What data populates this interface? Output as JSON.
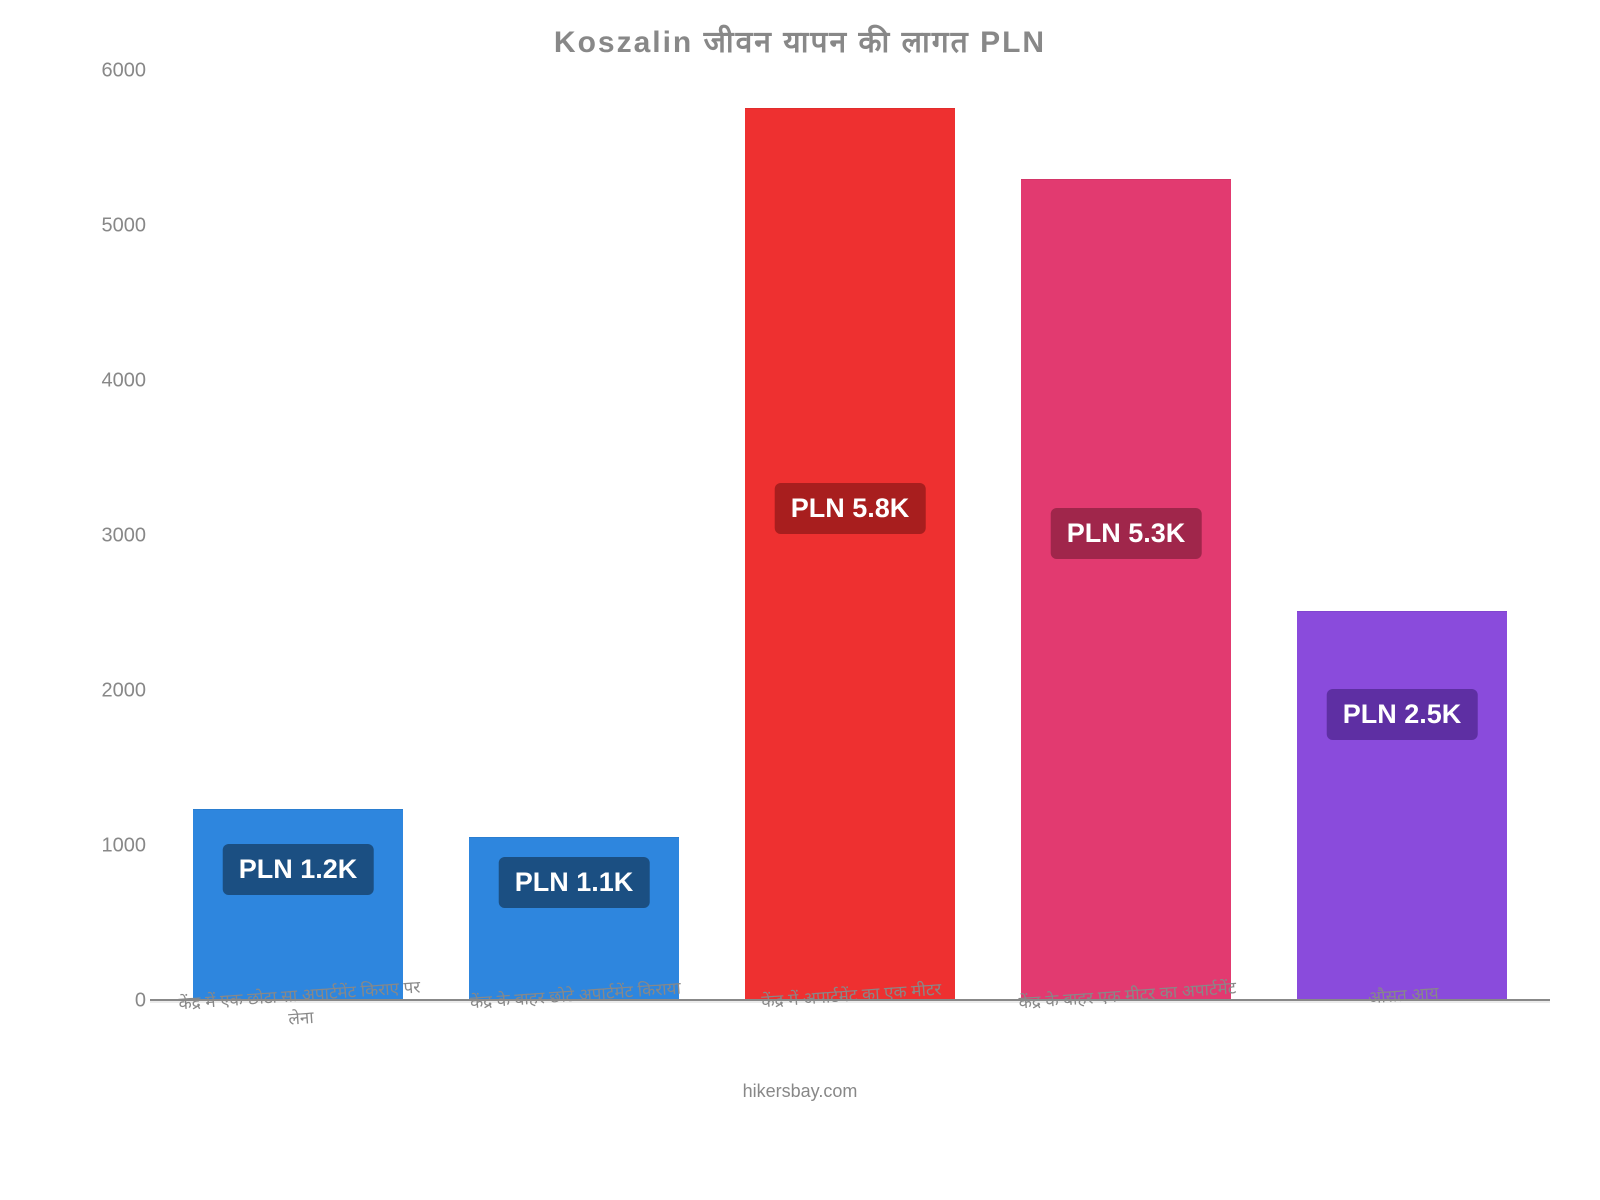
{
  "chart": {
    "type": "bar",
    "title": "Koszalin जीवन   यापन   की   लागत   PLN",
    "title_color": "#888888",
    "title_fontsize": 30,
    "background_color": "#ffffff",
    "y_axis": {
      "min": 0,
      "max": 6000,
      "ticks": [
        0,
        1000,
        2000,
        3000,
        4000,
        5000,
        6000
      ],
      "tick_fontsize": 20,
      "tick_color": "#888888"
    },
    "x_axis": {
      "label_fontsize": 17,
      "label_color": "#888888",
      "label_rotation_deg": -4
    },
    "bars": [
      {
        "category": "केंद्र में एक छोटा सा अपार्टमेंट किराए पर लेना",
        "value": 1230,
        "display": "PLN 1.2K",
        "bar_color": "#2e86de",
        "label_bg": "#1b4f82",
        "label_top_pct": 18
      },
      {
        "category": "केंद्र के बाहर छोटे अपार्टमेंट किराया",
        "value": 1050,
        "display": "PLN 1.1K",
        "bar_color": "#2e86de",
        "label_bg": "#1b4f82",
        "label_top_pct": 12
      },
      {
        "category": "केंद्र में अपार्टमेंट का एक मीटर",
        "value": 5760,
        "display": "PLN 5.8K",
        "bar_color": "#ee3030",
        "label_bg": "#a81e1e",
        "label_top_pct": 42
      },
      {
        "category": "केंद्र के बाहर एक मीटर का अपार्टमेंट",
        "value": 5300,
        "display": "PLN 5.3K",
        "bar_color": "#e23a70",
        "label_bg": "#a0264b",
        "label_top_pct": 40
      },
      {
        "category": "औसत आय",
        "value": 2510,
        "display": "PLN 2.5K",
        "bar_color": "#8a4bdc",
        "label_bg": "#5e2fa3",
        "label_top_pct": 20
      }
    ],
    "bar_width_pct": 76,
    "value_label_fontsize": 27,
    "value_label_color": "#ffffff",
    "footer": "hikersbay.com",
    "footer_color": "#888888",
    "footer_fontsize": 18
  }
}
